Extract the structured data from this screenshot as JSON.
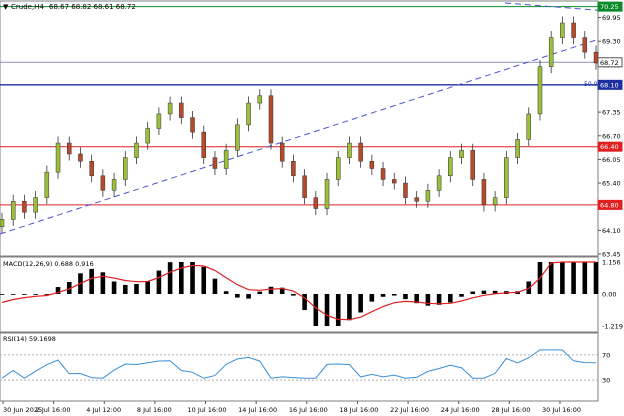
{
  "header": {
    "symbol": "Crude,H4",
    "ohlc": "68.67 68.82 68.61 68.72",
    "arrow": "▼"
  },
  "price_axis": {
    "ticks": [
      "69.95",
      "69.30",
      "68.65",
      "67.35",
      "66.70",
      "66.05",
      "65.40",
      "64.75",
      "64.10",
      "63.45"
    ],
    "tick_values": [
      69.95,
      69.3,
      68.65,
      67.35,
      66.7,
      66.05,
      65.4,
      64.75,
      64.1,
      63.45
    ],
    "badges": [
      {
        "label": "70.25",
        "value": 70.25,
        "color": "#0a8a2a"
      },
      {
        "label": "68.72",
        "value": 68.72,
        "color": "#ffffff"
      },
      {
        "label": "68.10",
        "value": 68.1,
        "color": "#1f2fa0"
      },
      {
        "label": "66.40",
        "value": 66.4,
        "color": "#e02020"
      },
      {
        "label": "64.80",
        "value": 64.8,
        "color": "#e02020"
      }
    ]
  },
  "levels": [
    {
      "value": 68.72,
      "color": "#8a8fb8"
    },
    {
      "value": 68.1,
      "color": "#1f2fa0"
    },
    {
      "value": 66.4,
      "color": "#e02020"
    },
    {
      "value": 64.8,
      "color": "#e02020"
    }
  ],
  "fib_label": "50.0",
  "macd": {
    "label": "MACD(12,26,9) 0.688 0.916",
    "ticks": [
      "1.156",
      "0.00",
      "-1.219"
    ],
    "tick_values": [
      1.156,
      0.0,
      -1.219
    ]
  },
  "rsi": {
    "label": "RSI(14) 59.1698",
    "ticks": [
      "100",
      "70",
      "30",
      "0"
    ],
    "tick_values": [
      100,
      70,
      30,
      0
    ]
  },
  "time_labels": [
    "30 Jun 2025",
    "2 Jul 16:00",
    "4 Jul 12:00",
    "8 Jul 16:00",
    "10 Jul 16:00",
    "14 Jul 16:00",
    "16 Jul 16:00",
    "18 Jul 16:00",
    "22 Jul 16:00",
    "24 Jul 16:00",
    "28 Jul 16:00",
    "30 Jul 16:00"
  ],
  "colors": {
    "bull": "#9bbf3a",
    "bear": "#b84a2c",
    "macd_signal": "#e02020",
    "rsi": "#3a8fd8",
    "support": "#e02020",
    "pivot": "#1f2fa0",
    "trend": "#4a55d0"
  },
  "chart_data": {
    "type": "candlestick",
    "symbol": "Crude",
    "timeframe": "H4",
    "x": [
      "30 Jun 2025",
      "2 Jul 16:00",
      "4 Jul 12:00",
      "8 Jul 16:00",
      "10 Jul 16:00",
      "14 Jul 16:00",
      "16 Jul 16:00",
      "18 Jul 16:00",
      "22 Jul 16:00",
      "24 Jul 16:00",
      "28 Jul 16:00",
      "30 Jul 16:00"
    ],
    "close_path": [
      64.4,
      64.9,
      64.6,
      65.0,
      65.7,
      66.5,
      66.2,
      66.0,
      65.6,
      65.2,
      65.5,
      66.1,
      66.5,
      66.9,
      67.3,
      67.6,
      67.2,
      66.8,
      66.1,
      65.8,
      66.3,
      67.0,
      67.6,
      67.8,
      66.5,
      66.0,
      65.6,
      65.0,
      64.7,
      65.5,
      66.1,
      66.5,
      66.0,
      65.8,
      65.5,
      65.4,
      65.0,
      64.9,
      65.2,
      65.6,
      66.1,
      66.3,
      65.5,
      64.8,
      65.0,
      66.1,
      66.6,
      67.3,
      68.6,
      69.4,
      69.8,
      69.4,
      69.0,
      68.7
    ],
    "ylim": [
      63.45,
      70.35
    ],
    "levels": [
      68.72,
      68.1,
      66.4,
      64.8
    ],
    "trendline": {
      "from": [
        "30 Jun 2025",
        64.1
      ],
      "to": [
        "30 Jul 16:00",
        69.3
      ]
    },
    "indicators": [
      {
        "name": "MACD(12,26,9)",
        "values": [
          0.688,
          0.916
        ],
        "ylim": [
          -1.219,
          1.156
        ]
      },
      {
        "name": "RSI(14)",
        "value": 59.1698,
        "ylim": [
          0,
          100
        ]
      }
    ]
  }
}
